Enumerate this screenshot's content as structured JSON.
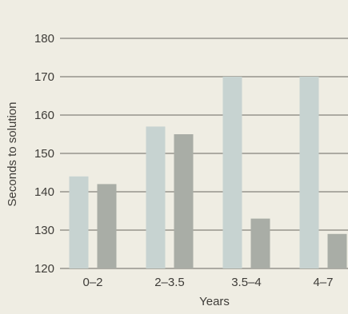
{
  "chart_data": {
    "type": "bar",
    "title": "",
    "xlabel": "Years",
    "ylabel": "Seconds to solution",
    "categories": [
      "0–2",
      "2–3.5",
      "3.5–4",
      "4–7"
    ],
    "series": [
      {
        "values": [
          144,
          157,
          170,
          170
        ]
      },
      {
        "values": [
          142,
          155,
          133,
          129
        ]
      }
    ],
    "ylim": [
      120,
      180
    ],
    "yticks": [
      120,
      130,
      140,
      150,
      160,
      170,
      180
    ],
    "grid": true,
    "legend": "none"
  },
  "colors": {
    "background": "#efede3",
    "series": [
      "#c7d3d1",
      "#a9ada6"
    ],
    "grid": "#6a6862",
    "text": "#3e3c38"
  }
}
